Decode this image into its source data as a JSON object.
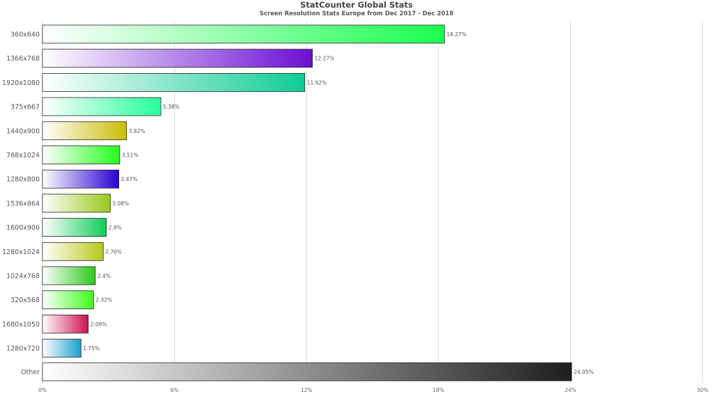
{
  "chart_data": {
    "type": "bar",
    "orientation": "horizontal",
    "title": "StatCounter Global Stats",
    "subtitle": "Screen Resolution Stats Europe from Dec 2017 - Dec 2018",
    "categories": [
      "360x640",
      "1366x768",
      "1920x1080",
      "375x667",
      "1440x900",
      "768x1024",
      "1280x800",
      "1536x864",
      "1600x900",
      "1280x1024",
      "1024x768",
      "320x568",
      "1680x1050",
      "1280x720",
      "Other"
    ],
    "values": [
      18.27,
      12.27,
      11.92,
      5.38,
      3.82,
      3.51,
      3.47,
      3.08,
      2.9,
      2.76,
      2.4,
      2.32,
      2.08,
      1.75,
      24.05
    ],
    "value_labels": [
      "18.27%",
      "12.27%",
      "11.92%",
      "5.38%",
      "3.82%",
      "3.51%",
      "3.47%",
      "3.08%",
      "2.9%",
      "2.76%",
      "2.4%",
      "2.32%",
      "2.08%",
      "1.75%",
      "24.05%"
    ],
    "bar_colors": [
      "#1aff4f",
      "#6a0fd2",
      "#0fcc94",
      "#25ff9a",
      "#c9bd06",
      "#22ff1a",
      "#2800d4",
      "#99c91a",
      "#0fcc5a",
      "#b8c91a",
      "#2cc91a",
      "#3dff1a",
      "#d01050",
      "#1aa0d0",
      "#1e1e1e"
    ],
    "xticks": [
      "0%",
      "6%",
      "12%",
      "18%",
      "24%",
      "30%"
    ],
    "xlim": [
      0,
      30
    ],
    "grid": true
  }
}
